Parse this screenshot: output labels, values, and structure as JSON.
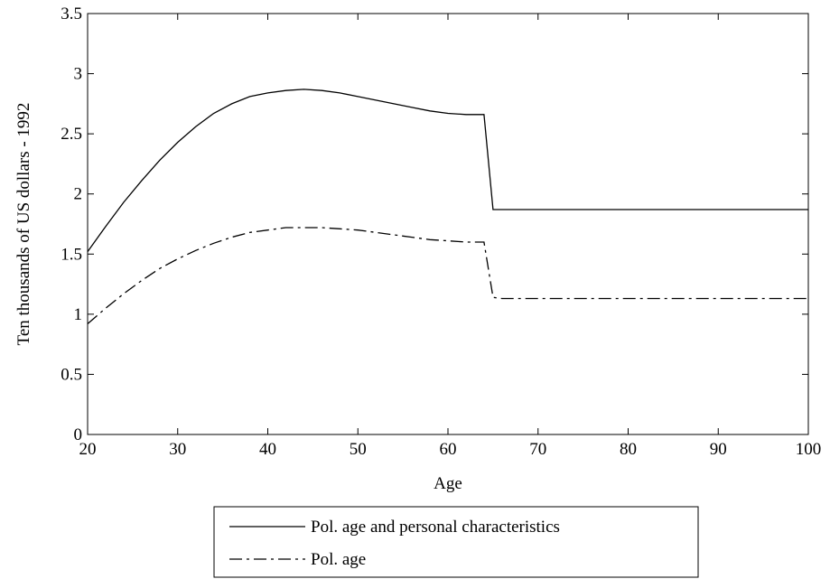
{
  "chart_data": {
    "type": "line",
    "title": "",
    "xlabel": "Age",
    "ylabel": "Ten thousands of US dollars - 1992",
    "xlim": [
      20,
      100
    ],
    "ylim": [
      0,
      3.5
    ],
    "xticks": [
      20,
      30,
      40,
      50,
      60,
      70,
      80,
      90,
      100
    ],
    "yticks": [
      0,
      0.5,
      1,
      1.5,
      2,
      2.5,
      3,
      3.5
    ],
    "xtick_labels": [
      "20",
      "30",
      "40",
      "50",
      "60",
      "70",
      "80",
      "90",
      "100"
    ],
    "ytick_labels": [
      "0",
      "0.5",
      "1",
      "1.5",
      "2",
      "2.5",
      "3",
      "3.5"
    ],
    "grid": false,
    "legend_position": "below",
    "series": [
      {
        "name": "Pol. age and personal characteristics",
        "line_style": "solid",
        "color": "#000000",
        "x": [
          20,
          22,
          24,
          26,
          28,
          30,
          32,
          34,
          36,
          38,
          40,
          42,
          44,
          46,
          48,
          50,
          52,
          54,
          56,
          58,
          60,
          62,
          64,
          65,
          66,
          70,
          80,
          90,
          100
        ],
        "y": [
          1.52,
          1.73,
          1.93,
          2.11,
          2.28,
          2.43,
          2.56,
          2.67,
          2.75,
          2.81,
          2.84,
          2.86,
          2.87,
          2.86,
          2.84,
          2.81,
          2.78,
          2.75,
          2.72,
          2.69,
          2.67,
          2.66,
          2.66,
          1.87,
          1.87,
          1.87,
          1.87,
          1.87,
          1.87
        ]
      },
      {
        "name": "Pol. age",
        "line_style": "dashdot",
        "color": "#000000",
        "x": [
          20,
          22,
          24,
          26,
          28,
          30,
          32,
          34,
          36,
          38,
          40,
          42,
          44,
          46,
          48,
          50,
          52,
          54,
          56,
          58,
          60,
          62,
          64,
          65,
          66,
          70,
          80,
          90,
          100
        ],
        "y": [
          0.92,
          1.05,
          1.17,
          1.28,
          1.38,
          1.46,
          1.53,
          1.59,
          1.64,
          1.68,
          1.7,
          1.72,
          1.72,
          1.72,
          1.71,
          1.7,
          1.68,
          1.66,
          1.64,
          1.62,
          1.61,
          1.6,
          1.6,
          1.14,
          1.13,
          1.13,
          1.13,
          1.13,
          1.13
        ]
      }
    ]
  }
}
